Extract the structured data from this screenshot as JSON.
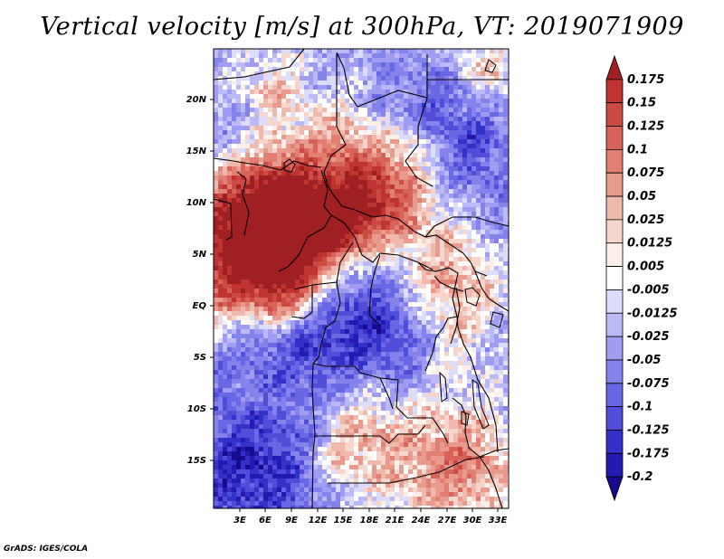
{
  "title": "Vertical velocity [m/s] at 300hPa, VT: 2019071909",
  "credit": "GrADS: IGES/COLA",
  "map": {
    "lat_labels": [
      "20N",
      "15N",
      "10N",
      "5N",
      "EQ",
      "5S",
      "10S",
      "15S"
    ],
    "lon_labels": [
      "3E",
      "6E",
      "9E",
      "12E",
      "15E",
      "18E",
      "21E",
      "24E",
      "27E",
      "30E",
      "33E"
    ],
    "lat_range": [
      -20.3,
      24.5
    ],
    "lon_range": [
      0,
      34
    ]
  },
  "colorbar": {
    "levels": [
      "0.175",
      "0.15",
      "0.125",
      "0.1",
      "0.075",
      "0.05",
      "0.025",
      "0.0125",
      "0.005",
      "-0.005",
      "-0.0125",
      "-0.025",
      "-0.05",
      "-0.075",
      "-0.1",
      "-0.125",
      "-0.175",
      "-0.2"
    ],
    "colors": [
      "#a01f22",
      "#bf3330",
      "#cc4a44",
      "#d8635a",
      "#e07f72",
      "#e89b8d",
      "#f0b9ad",
      "#f6d5cc",
      "#fcefea",
      "#ffffff",
      "#dcdcfb",
      "#bbb9f7",
      "#9f9cf2",
      "#8582ec",
      "#6b66e3",
      "#524cd8",
      "#3530c8",
      "#2419b0",
      "#180a8e"
    ]
  }
}
